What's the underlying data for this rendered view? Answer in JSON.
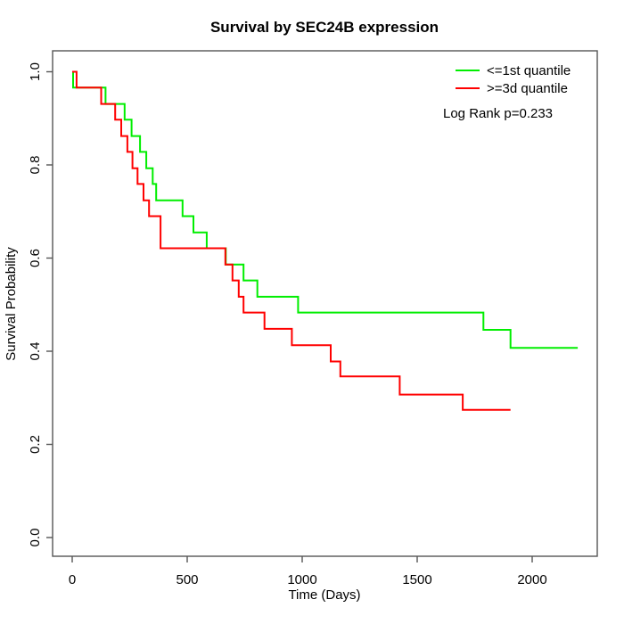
{
  "title": "Survival by SEC24B expression",
  "chart_data": {
    "type": "line",
    "subtype": "kaplan-meier-step",
    "title": "Survival by SEC24B expression",
    "xlabel": "Time (Days)",
    "ylabel": "Survival Probability",
    "xlim": [
      -88,
      2286
    ],
    "ylim": [
      0.0,
      1.0
    ],
    "grid": false,
    "legend_position": "top-right",
    "annotation": "Log Rank p=0.233",
    "x_ticks": {
      "values": [
        0,
        500,
        1000,
        1500,
        2000
      ],
      "labels": [
        "0",
        "500",
        "1000",
        "1500",
        "2000"
      ]
    },
    "y_ticks": {
      "values": [
        0.0,
        0.2,
        0.4,
        0.6,
        0.8,
        1.0
      ],
      "labels": [
        "0.0",
        "0.2",
        "0.4",
        "0.6",
        "0.8",
        "1.0"
      ]
    },
    "series": [
      {
        "name": "<=1st quantile",
        "color": "#00EE00",
        "points": [
          [
            0,
            1.0
          ],
          [
            4,
            0.966
          ],
          [
            145,
            0.931
          ],
          [
            228,
            0.897
          ],
          [
            258,
            0.862
          ],
          [
            295,
            0.828
          ],
          [
            322,
            0.793
          ],
          [
            350,
            0.759
          ],
          [
            365,
            0.724
          ],
          [
            480,
            0.69
          ],
          [
            527,
            0.655
          ],
          [
            585,
            0.621
          ],
          [
            668,
            0.586
          ],
          [
            745,
            0.552
          ],
          [
            805,
            0.517
          ],
          [
            982,
            0.483
          ],
          [
            1788,
            0.446
          ],
          [
            1906,
            0.407
          ],
          [
            2198,
            0.407
          ]
        ]
      },
      {
        "name": ">=3d quantile",
        "color": "#FF0000",
        "points": [
          [
            0,
            1.0
          ],
          [
            19,
            0.966
          ],
          [
            126,
            0.931
          ],
          [
            187,
            0.897
          ],
          [
            213,
            0.862
          ],
          [
            240,
            0.828
          ],
          [
            262,
            0.793
          ],
          [
            284,
            0.759
          ],
          [
            310,
            0.724
          ],
          [
            334,
            0.69
          ],
          [
            384,
            0.621
          ],
          [
            666,
            0.586
          ],
          [
            697,
            0.552
          ],
          [
            724,
            0.517
          ],
          [
            745,
            0.483
          ],
          [
            836,
            0.448
          ],
          [
            955,
            0.413
          ],
          [
            1124,
            0.378
          ],
          [
            1166,
            0.346
          ],
          [
            1424,
            0.307
          ],
          [
            1698,
            0.274
          ],
          [
            1906,
            0.274
          ]
        ]
      }
    ]
  }
}
